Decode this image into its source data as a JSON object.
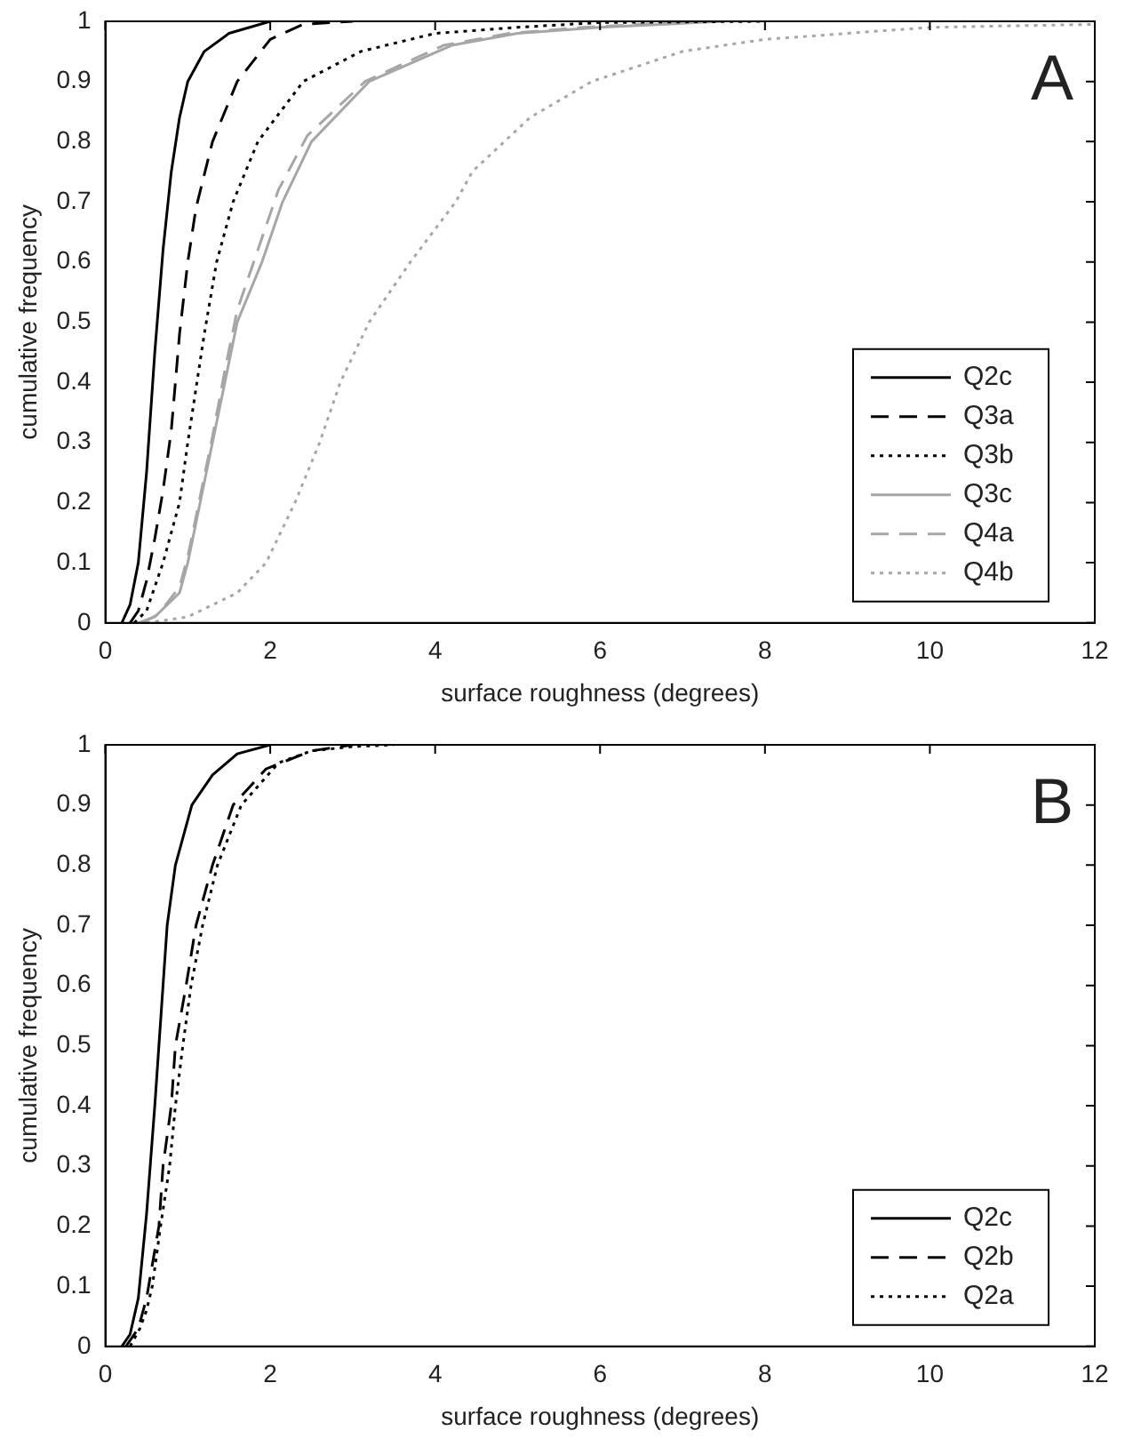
{
  "chart_data": [
    {
      "type": "line",
      "xlabel": "surface roughness (degrees)",
      "ylabel": "cumulative frequency",
      "annotations": [
        "A"
      ],
      "xlim": [
        0,
        12
      ],
      "xticks": [
        0,
        2,
        4,
        6,
        8,
        10,
        12
      ],
      "ylim": [
        0,
        1
      ],
      "yticks": [
        0,
        0.1,
        0.2,
        0.3,
        0.4,
        0.5,
        0.6,
        0.7,
        0.8,
        0.9,
        1
      ],
      "grid": false,
      "legend": "bottom right",
      "marker": "none",
      "series": [
        {
          "name": "Q2c",
          "color": "#000000",
          "line_style": "solid",
          "x": [
            0.2,
            0.3,
            0.4,
            0.5,
            0.6,
            0.7,
            0.8,
            0.9,
            1.0,
            1.2,
            1.5,
            2.0
          ],
          "values": [
            0,
            0.03,
            0.1,
            0.25,
            0.45,
            0.62,
            0.75,
            0.84,
            0.9,
            0.95,
            0.98,
            1
          ]
        },
        {
          "name": "Q3a",
          "color": "#000000",
          "line_style": "dashed",
          "x": [
            0.3,
            0.4,
            0.5,
            0.6,
            0.7,
            0.8,
            0.9,
            1.0,
            1.1,
            1.3,
            1.6,
            2.0,
            2.4,
            3
          ],
          "values": [
            0,
            0.02,
            0.07,
            0.14,
            0.22,
            0.32,
            0.48,
            0.6,
            0.69,
            0.8,
            0.9,
            0.97,
            0.995,
            1
          ]
        },
        {
          "name": "Q3b",
          "color": "#000000",
          "line_style": "dotted",
          "x": [
            0.35,
            0.5,
            0.7,
            0.9,
            1.0,
            1.1,
            1.2,
            1.35,
            1.55,
            1.85,
            2.4,
            3.1,
            4,
            5,
            6,
            8
          ],
          "values": [
            0,
            0.02,
            0.1,
            0.2,
            0.3,
            0.39,
            0.48,
            0.6,
            0.7,
            0.8,
            0.9,
            0.95,
            0.98,
            0.99,
            0.998,
            1
          ]
        },
        {
          "name": "Q3c",
          "color": "#a6a6a6",
          "line_style": "solid",
          "x": [
            0.4,
            0.6,
            0.9,
            1.0,
            1.15,
            1.3,
            1.45,
            1.6,
            1.9,
            2.15,
            2.5,
            3.2,
            4.2,
            5,
            6,
            7.5
          ],
          "values": [
            0,
            0.01,
            0.05,
            0.1,
            0.2,
            0.3,
            0.4,
            0.5,
            0.6,
            0.7,
            0.8,
            0.9,
            0.96,
            0.98,
            0.99,
            1
          ]
        },
        {
          "name": "Q4a",
          "color": "#a6a6a6",
          "line_style": "dashed",
          "x": [
            0.45,
            0.65,
            0.9,
            1.0,
            1.15,
            1.3,
            1.45,
            1.6,
            1.85,
            2.1,
            2.45,
            3.15,
            4.1,
            4.9,
            5.8,
            7.2
          ],
          "values": [
            0,
            0.015,
            0.06,
            0.11,
            0.21,
            0.31,
            0.42,
            0.52,
            0.62,
            0.72,
            0.81,
            0.9,
            0.96,
            0.98,
            0.99,
            1
          ]
        },
        {
          "name": "Q4b",
          "color": "#a6a6a6",
          "line_style": "dotted",
          "x": [
            0.5,
            1.0,
            1.3,
            1.6,
            1.95,
            2.3,
            2.6,
            2.85,
            3.2,
            3.7,
            4.25,
            4.45,
            5.15,
            5.9,
            7,
            8,
            10,
            12
          ],
          "values": [
            0,
            0.01,
            0.03,
            0.05,
            0.1,
            0.2,
            0.3,
            0.4,
            0.5,
            0.6,
            0.7,
            0.75,
            0.84,
            0.9,
            0.95,
            0.97,
            0.99,
            0.995
          ]
        }
      ]
    },
    {
      "type": "line",
      "xlabel": "surface roughness (degrees)",
      "ylabel": "cumulative frequency",
      "annotations": [
        "B"
      ],
      "xlim": [
        0,
        12
      ],
      "xticks": [
        0,
        2,
        4,
        6,
        8,
        10,
        12
      ],
      "ylim": [
        0,
        1
      ],
      "yticks": [
        0,
        0.1,
        0.2,
        0.3,
        0.4,
        0.5,
        0.6,
        0.7,
        0.8,
        0.9,
        1
      ],
      "grid": false,
      "legend": "bottom right",
      "marker": "none",
      "series": [
        {
          "name": "Q2c",
          "color": "#000000",
          "line_style": "solid",
          "x": [
            0.2,
            0.3,
            0.4,
            0.5,
            0.6,
            0.65,
            0.7,
            0.75,
            0.85,
            1.05,
            1.3,
            1.6,
            2.0
          ],
          "values": [
            0,
            0.02,
            0.08,
            0.22,
            0.4,
            0.5,
            0.6,
            0.7,
            0.8,
            0.9,
            0.95,
            0.985,
            1
          ]
        },
        {
          "name": "Q2b",
          "color": "#000000",
          "line_style": "dashed",
          "x": [
            0.25,
            0.4,
            0.5,
            0.55,
            0.65,
            0.7,
            0.8,
            0.85,
            0.98,
            1.1,
            1.3,
            1.55,
            1.95,
            2.5,
            3
          ],
          "values": [
            0,
            0.03,
            0.08,
            0.12,
            0.2,
            0.3,
            0.4,
            0.5,
            0.6,
            0.7,
            0.8,
            0.9,
            0.96,
            0.99,
            1
          ]
        },
        {
          "name": "Q2a",
          "color": "#000000",
          "line_style": "dotted",
          "x": [
            0.3,
            0.42,
            0.5,
            0.57,
            0.67,
            0.78,
            0.85,
            0.94,
            1.04,
            1.18,
            1.36,
            1.65,
            2.1,
            2.5,
            3,
            3.5
          ],
          "values": [
            0,
            0.03,
            0.06,
            0.1,
            0.2,
            0.3,
            0.4,
            0.5,
            0.6,
            0.7,
            0.8,
            0.9,
            0.97,
            0.99,
            0.997,
            1
          ]
        }
      ]
    }
  ]
}
